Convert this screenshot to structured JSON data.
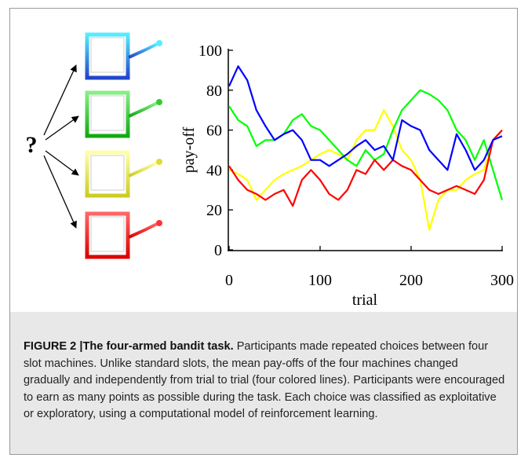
{
  "diagram": {
    "question_mark": "?"
  },
  "chart_data": {
    "type": "line",
    "ylabel": "pay-off",
    "xlabel": "trial",
    "x": [
      0,
      10,
      20,
      30,
      40,
      50,
      60,
      70,
      80,
      90,
      100,
      110,
      120,
      130,
      140,
      150,
      160,
      170,
      180,
      190,
      200,
      210,
      220,
      230,
      240,
      250,
      260,
      270,
      280,
      290,
      300
    ],
    "series": [
      {
        "color": "#ffff00",
        "values": [
          40,
          38,
          35,
          25,
          30,
          35,
          38,
          40,
          42,
          45,
          48,
          50,
          48,
          45,
          55,
          60,
          60,
          70,
          62,
          50,
          45,
          35,
          10,
          25,
          30,
          30,
          35,
          38,
          40,
          55,
          60
        ]
      },
      {
        "color": "#00ff00",
        "values": [
          72,
          65,
          62,
          52,
          55,
          55,
          58,
          65,
          68,
          62,
          60,
          55,
          50,
          45,
          42,
          50,
          45,
          48,
          60,
          70,
          75,
          80,
          78,
          75,
          70,
          60,
          55,
          45,
          55,
          40,
          25
        ]
      },
      {
        "color": "#ff0000",
        "values": [
          42,
          35,
          30,
          28,
          25,
          28,
          30,
          22,
          35,
          40,
          35,
          28,
          25,
          30,
          40,
          38,
          45,
          40,
          45,
          42,
          40,
          35,
          30,
          28,
          30,
          32,
          30,
          28,
          35,
          55,
          60
        ]
      },
      {
        "color": "#0000ff",
        "values": [
          82,
          92,
          85,
          70,
          62,
          55,
          58,
          60,
          55,
          45,
          45,
          42,
          45,
          48,
          52,
          55,
          50,
          52,
          45,
          65,
          62,
          60,
          50,
          45,
          40,
          58,
          50,
          40,
          45,
          55,
          57
        ]
      }
    ],
    "xlim": [
      0,
      300
    ],
    "ylim": [
      0,
      100
    ],
    "xticks": [
      0,
      100,
      200,
      300
    ],
    "yticks": [
      0,
      20,
      40,
      60,
      80,
      100
    ]
  },
  "caption": {
    "label": "FIGURE 2 |The four-armed bandit task.",
    "text": "Participants made repeated choices between four slot machines. Unlike standard slots, the mean pay-offs of the four machines changed gradually and independently from trial to trial (four colored lines). Participants were encouraged to earn as many points as possible during the task. Each choice was classified as exploitative or exploratory, using a computational model of reinforcement learning."
  }
}
